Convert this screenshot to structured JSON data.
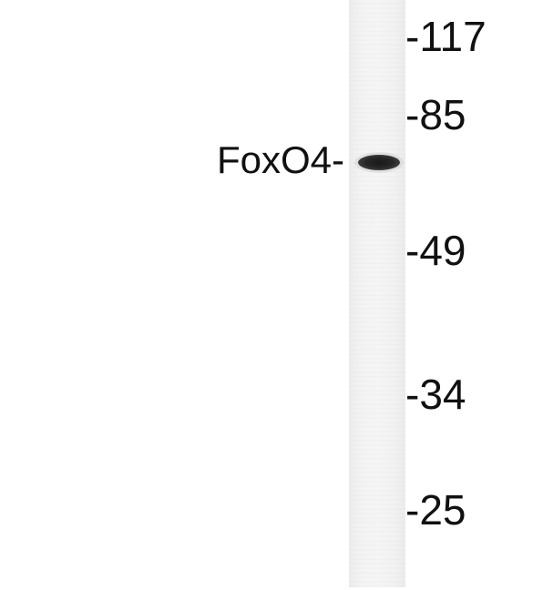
{
  "band_label": "FoxO4-",
  "markers": [
    {
      "label": "-117"
    },
    {
      "label": "-85"
    },
    {
      "label": "-49"
    },
    {
      "label": "-34"
    },
    {
      "label": "-25"
    }
  ],
  "colors": {
    "background": "#ffffff",
    "lane": "#f3f3f3",
    "band": "#1f1f1f",
    "text": "#111111"
  }
}
